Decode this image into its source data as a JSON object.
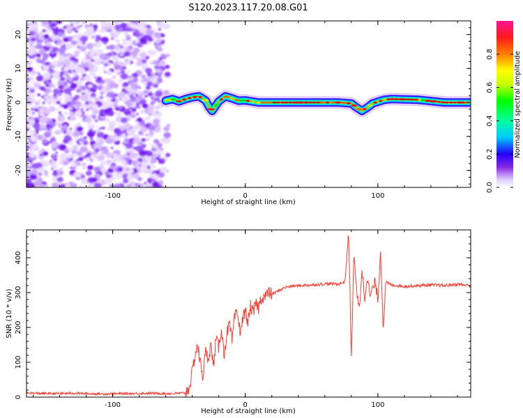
{
  "figure_title": "S120.2023.117.20.08.G01",
  "chart_data": [
    {
      "type": "heatmap",
      "title": "S120.2023.117.20.08.G01",
      "xlabel": "Height of straight line (km)",
      "ylabel": "Frequency (Hz)",
      "xlim": [
        -165,
        170
      ],
      "ylim": [
        -25,
        24
      ],
      "xticks": [
        -100,
        0,
        100
      ],
      "xtick_labels": [
        "-100",
        "0",
        "100"
      ],
      "yticks": [
        -20,
        -10,
        0,
        10,
        20
      ],
      "ytick_labels": [
        "-20",
        "-10",
        "0",
        "10",
        "20"
      ],
      "noise_region_x": [
        -165,
        -60
      ],
      "signal_track": {
        "x": [
          -60,
          -55,
          -50,
          -45,
          -40,
          -35,
          -30,
          -27,
          -25,
          -20,
          -15,
          -10,
          -5,
          0,
          5,
          10,
          20,
          40,
          60,
          70,
          80,
          84,
          88,
          92,
          96,
          100,
          105,
          110,
          130,
          150,
          170
        ],
        "freq": [
          0.5,
          1.0,
          0.3,
          1.0,
          1.5,
          1.8,
          0.6,
          -1.5,
          -2.5,
          0.3,
          1.8,
          1.2,
          0.5,
          0.6,
          0.3,
          0.0,
          0.0,
          0.0,
          0.0,
          0.0,
          -0.3,
          -1.5,
          -2.5,
          -1.5,
          -0.3,
          0.2,
          0.8,
          1.0,
          0.8,
          0.0,
          0.0
        ]
      },
      "colorbar": {
        "label": "Normalized spectral amplitude",
        "range": [
          0,
          1
        ],
        "ticks": [
          0.0,
          0.2,
          0.4,
          0.6,
          0.8
        ],
        "tick_labels": [
          "0.0",
          "0.2",
          "0.4",
          "0.6",
          "0.8"
        ]
      }
    },
    {
      "type": "line",
      "xlabel": "Height of straight line (km)",
      "ylabel": "SNR (10 * v/v)",
      "xlim": [
        -165,
        170
      ],
      "ylim": [
        0,
        480
      ],
      "xticks": [
        -100,
        0,
        100
      ],
      "xtick_labels": [
        "-100",
        "0",
        "100"
      ],
      "yticks": [
        0,
        100,
        200,
        300,
        400
      ],
      "ytick_labels": [
        "0",
        "100",
        "200",
        "300",
        "400"
      ],
      "series": [
        {
          "name": "SNR",
          "color": "#ff3b30",
          "x": [
            -165,
            -150,
            -130,
            -110,
            -90,
            -70,
            -55,
            -45,
            -42,
            -40,
            -38,
            -36,
            -34,
            -32,
            -30,
            -28,
            -26,
            -24,
            -22,
            -20,
            -18,
            -16,
            -14,
            -12,
            -10,
            -8,
            -6,
            -4,
            -2,
            0,
            2,
            4,
            6,
            8,
            10,
            12,
            15,
            18,
            20,
            25,
            30,
            35,
            40,
            50,
            60,
            70,
            75,
            78,
            80,
            82,
            84,
            86,
            88,
            90,
            92,
            94,
            96,
            98,
            100,
            102,
            104,
            106,
            110,
            120,
            130,
            140,
            150,
            160,
            170
          ],
          "values": [
            12,
            10,
            11,
            9,
            10,
            11,
            10,
            12,
            30,
            70,
            120,
            150,
            100,
            60,
            130,
            110,
            150,
            90,
            170,
            140,
            200,
            120,
            180,
            210,
            160,
            230,
            240,
            190,
            220,
            250,
            215,
            260,
            240,
            270,
            255,
            285,
            290,
            300,
            295,
            305,
            315,
            318,
            320,
            322,
            325,
            325,
            330,
            470,
            110,
            420,
            300,
            250,
            370,
            280,
            350,
            290,
            310,
            330,
            280,
            420,
            200,
            330,
            322,
            318,
            320,
            322,
            320,
            324,
            320
          ]
        }
      ]
    }
  ]
}
